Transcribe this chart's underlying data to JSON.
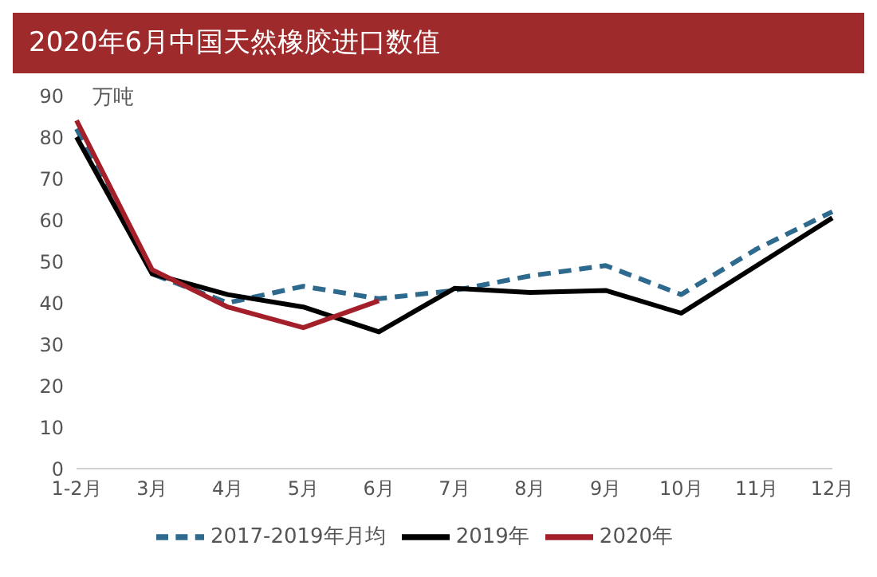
{
  "chart_data": {
    "type": "line",
    "title": "2020年6月中国天然橡胶进口数值",
    "ylabel": "万吨",
    "categories": [
      "1-2月",
      "3月",
      "4月",
      "5月",
      "6月",
      "7月",
      "8月",
      "9月",
      "10月",
      "11月",
      "12月"
    ],
    "series": [
      {
        "name": "2017-2019年月均",
        "color": "#2e6a8e",
        "line_style": "dashed",
        "values": [
          82,
          47,
          40,
          44,
          41,
          43,
          46.5,
          49,
          42,
          53,
          62
        ]
      },
      {
        "name": "2019年",
        "color": "#000000",
        "values": [
          80,
          47,
          42,
          39,
          33,
          43.5,
          42.5,
          43,
          37.5,
          49,
          60.5
        ]
      },
      {
        "name": "2020年",
        "color": "#a3202a",
        "values": [
          84,
          48,
          39,
          34,
          40.5,
          null,
          null,
          null,
          null,
          null,
          null
        ]
      }
    ],
    "ylim": [
      0,
      90
    ],
    "yticks": [
      0,
      10,
      20,
      30,
      40,
      50,
      60,
      70,
      80,
      90
    ],
    "grid": false,
    "legend": "bottom",
    "marker": "none",
    "line_style": "solid"
  }
}
